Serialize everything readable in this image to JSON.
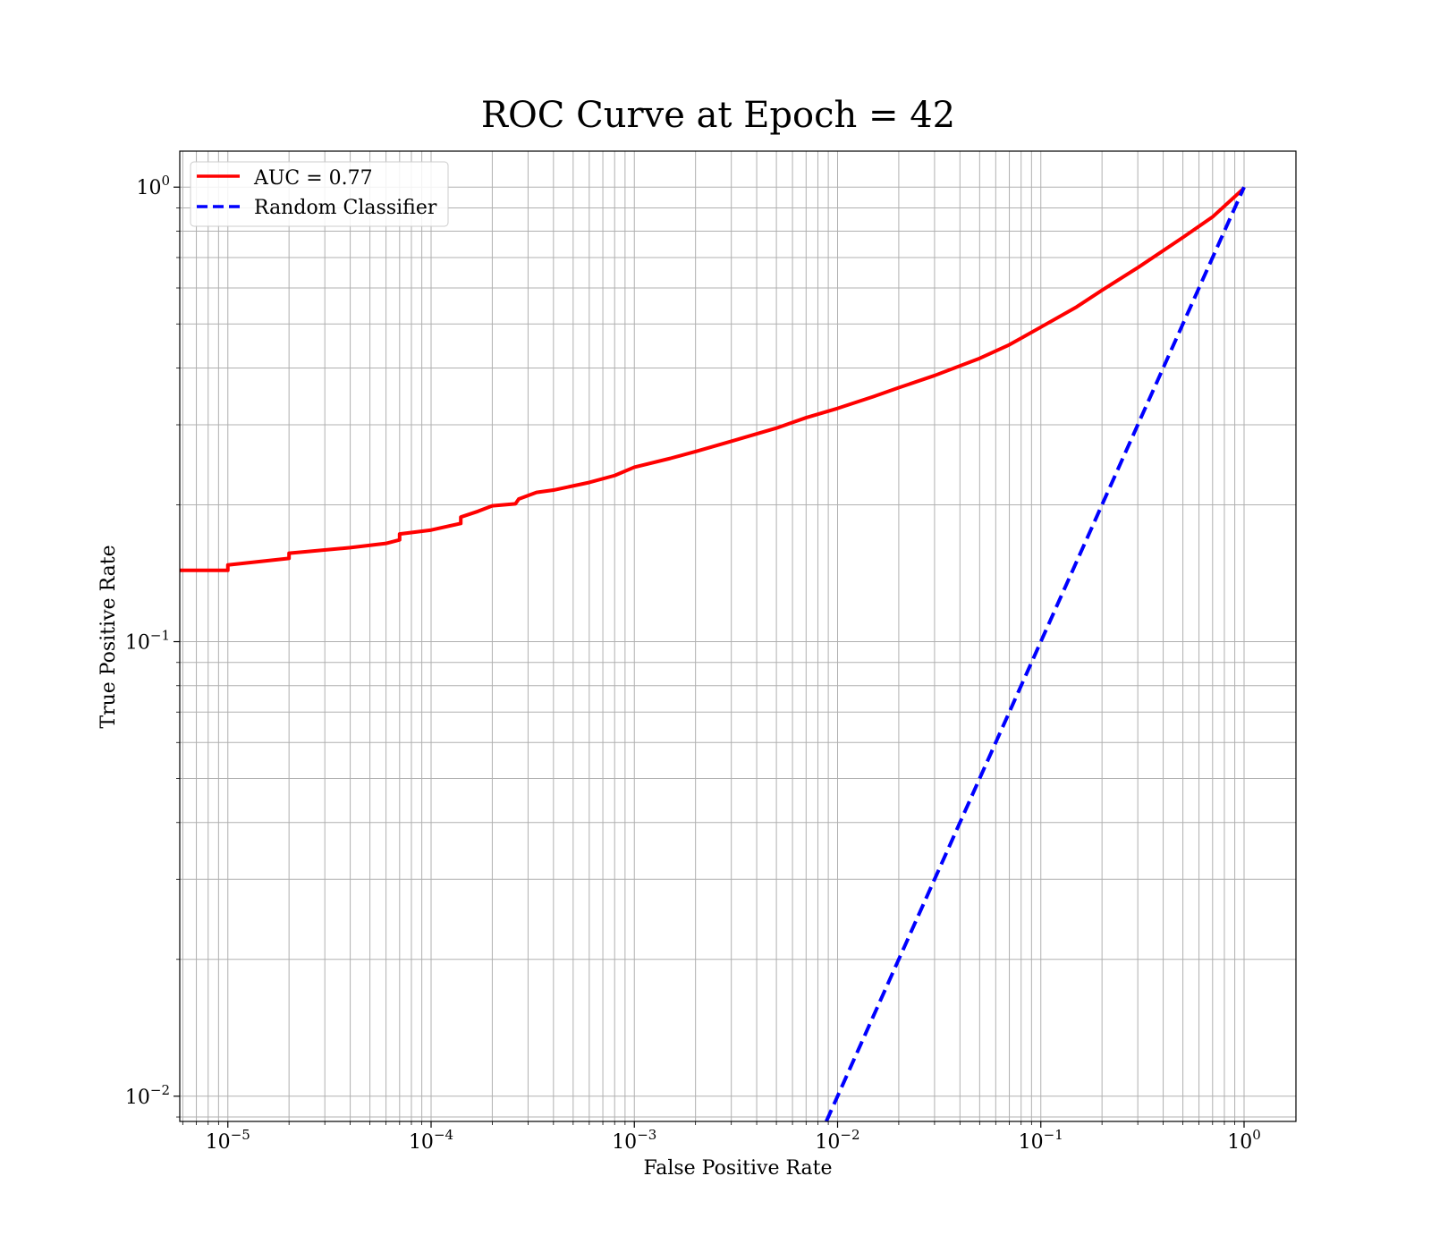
{
  "chart_data": {
    "type": "line",
    "title": "ROC Curve at Epoch = 42",
    "xlabel": "False Positive Rate",
    "ylabel": "True Positive Rate",
    "xscale": "log",
    "yscale": "log",
    "xlim": [
      5.8e-06,
      1.8
    ],
    "ylim": [
      0.0088,
      1.2
    ],
    "grid": "both major and minor",
    "legend_position": "top-left",
    "x_ticks": [
      {
        "base": "10",
        "exp": "−5",
        "value": 1e-05
      },
      {
        "base": "10",
        "exp": "−4",
        "value": 0.0001
      },
      {
        "base": "10",
        "exp": "−3",
        "value": 0.001
      },
      {
        "base": "10",
        "exp": "−2",
        "value": 0.01
      },
      {
        "base": "10",
        "exp": "−1",
        "value": 0.1
      },
      {
        "base": "10",
        "exp": "0",
        "value": 1
      }
    ],
    "y_ticks": [
      {
        "base": "10",
        "exp": "−2",
        "value": 0.01
      },
      {
        "base": "10",
        "exp": "−1",
        "value": 0.1
      },
      {
        "base": "10",
        "exp": "0",
        "value": 1
      }
    ],
    "series": [
      {
        "name": "AUC = 0.77",
        "color": "#ff0000",
        "style": "solid",
        "points": [
          [
            5.8e-06,
            0.1435
          ],
          [
            1e-05,
            0.1435
          ],
          [
            1e-05,
            0.1475
          ],
          [
            2e-05,
            0.1525
          ],
          [
            2e-05,
            0.1565
          ],
          [
            4e-05,
            0.161
          ],
          [
            6e-05,
            0.1645
          ],
          [
            7e-05,
            0.1675
          ],
          [
            7e-05,
            0.1725
          ],
          [
            0.0001,
            0.176
          ],
          [
            0.00014,
            0.182
          ],
          [
            0.00014,
            0.188
          ],
          [
            0.00017,
            0.1935
          ],
          [
            0.0002,
            0.199
          ],
          [
            0.00026,
            0.201
          ],
          [
            0.00027,
            0.206
          ],
          [
            0.00033,
            0.213
          ],
          [
            0.0004,
            0.2155
          ],
          [
            0.0006,
            0.224
          ],
          [
            0.0008,
            0.232
          ],
          [
            0.001,
            0.242
          ],
          [
            0.0015,
            0.253
          ],
          [
            0.002,
            0.262
          ],
          [
            0.003,
            0.276
          ],
          [
            0.005,
            0.295
          ],
          [
            0.007,
            0.311
          ],
          [
            0.01,
            0.326
          ],
          [
            0.015,
            0.346
          ],
          [
            0.02,
            0.362
          ],
          [
            0.03,
            0.385
          ],
          [
            0.05,
            0.42
          ],
          [
            0.07,
            0.45
          ],
          [
            0.1,
            0.492
          ],
          [
            0.15,
            0.545
          ],
          [
            0.2,
            0.593
          ],
          [
            0.3,
            0.665
          ],
          [
            0.5,
            0.775
          ],
          [
            0.7,
            0.86
          ],
          [
            1.0,
            0.995
          ]
        ]
      },
      {
        "name": "Random Classifier",
        "color": "#0000ff",
        "style": "dashed",
        "points": [
          [
            0.0088,
            0.0088
          ],
          [
            1.0,
            1.0
          ]
        ]
      }
    ]
  }
}
